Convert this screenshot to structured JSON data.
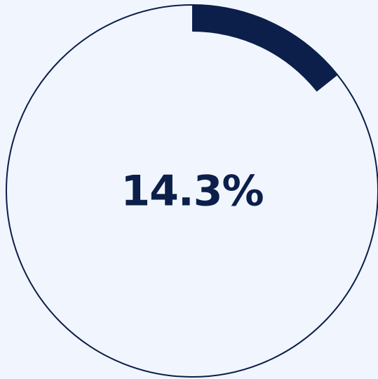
{
  "chart_data": {
    "type": "progress",
    "values": [
      14.3
    ],
    "value_labels": [
      "14.3%"
    ],
    "ylim": [
      0,
      100
    ],
    "color": "#0b1f4a"
  }
}
